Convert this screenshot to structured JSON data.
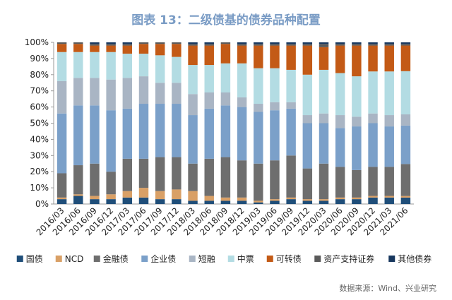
{
  "chart_data": {
    "type": "bar",
    "stacked": true,
    "percent": true,
    "title": "图表 13：二级债基的债券品种配置",
    "xlabel": "",
    "ylabel": "",
    "ylim": [
      0,
      100
    ],
    "yticks": [
      "0%",
      "10%",
      "20%",
      "30%",
      "40%",
      "50%",
      "60%",
      "70%",
      "80%",
      "90%",
      "100%"
    ],
    "legend_position": "bottom",
    "grid": false,
    "categories": [
      "2016/03",
      "2016/06",
      "2016/09",
      "2016/12",
      "2017/03",
      "2017/06",
      "2017/09",
      "2017/12",
      "2018/03",
      "2018/06",
      "2018/09",
      "2018/12",
      "2019/03",
      "2019/06",
      "2019/09",
      "2019/12",
      "2020/03",
      "2020/06",
      "2020/09",
      "2020/12",
      "2021/03",
      "2021/06"
    ],
    "series": [
      {
        "name": "国债",
        "color": "#1f4e79",
        "values": [
          3,
          5,
          3,
          3,
          4,
          4,
          3,
          3,
          2,
          2,
          2,
          2,
          1,
          2,
          3,
          2,
          2,
          3,
          3,
          4,
          4,
          4
        ]
      },
      {
        "name": "NCD",
        "color": "#d9a066",
        "values": [
          1,
          1,
          2,
          3,
          4,
          6,
          5,
          6,
          6,
          3,
          2,
          2,
          1,
          1,
          1,
          1,
          1,
          1,
          1,
          1,
          1,
          1
        ]
      },
      {
        "name": "金融债",
        "color": "#6e6e6e",
        "values": [
          15,
          18,
          20,
          14,
          20,
          18,
          21,
          20,
          17,
          23,
          25,
          23,
          23,
          24,
          26,
          19,
          22,
          19,
          17,
          18,
          18,
          20
        ]
      },
      {
        "name": "企业债",
        "color": "#7ba0c9",
        "values": [
          37,
          37,
          36,
          38,
          31,
          34,
          33,
          33,
          30,
          31,
          32,
          33,
          32,
          31,
          29,
          28,
          25,
          24,
          27,
          27,
          25,
          24
        ]
      },
      {
        "name": "短融",
        "color": "#a9b5c4",
        "values": [
          20,
          17,
          17,
          19,
          19,
          17,
          13,
          13,
          13,
          10,
          8,
          6,
          5,
          5,
          4,
          5,
          6,
          8,
          6,
          6,
          7,
          7
        ]
      },
      {
        "name": "中票",
        "color": "#b3dce3",
        "values": [
          18,
          16,
          16,
          17,
          15,
          14,
          17,
          16,
          18,
          17,
          18,
          21,
          22,
          21,
          20,
          25,
          27,
          26,
          25,
          26,
          27,
          27
        ]
      },
      {
        "name": "可转债",
        "color": "#c35a16",
        "values": [
          5,
          5,
          4,
          4,
          5,
          6,
          7,
          8,
          12,
          12,
          12,
          11,
          14,
          14,
          15,
          18,
          14,
          17,
          19,
          16,
          16,
          16
        ]
      },
      {
        "name": "资产支持证券",
        "color": "#5a5a5a",
        "values": [
          1,
          1,
          1,
          1,
          1,
          1,
          1,
          1,
          1,
          1,
          1,
          1,
          1,
          1,
          1,
          1,
          2,
          1,
          1,
          1,
          1,
          1
        ]
      },
      {
        "name": "其他债券",
        "color": "#17375e",
        "values": [
          0,
          0,
          1,
          1,
          1,
          0,
          0,
          0,
          1,
          1,
          0,
          1,
          1,
          1,
          1,
          1,
          1,
          1,
          1,
          1,
          1,
          1
        ]
      }
    ]
  },
  "source_text": "数据来源：Wind、兴业研究"
}
